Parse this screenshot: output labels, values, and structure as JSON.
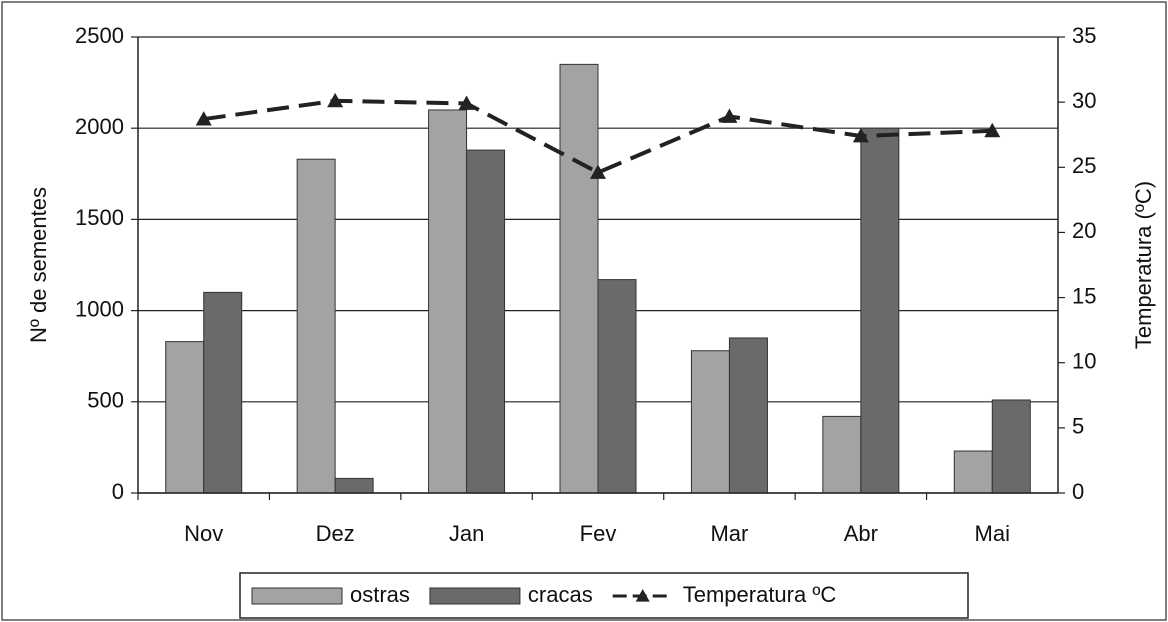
{
  "chart_data": {
    "type": "bar",
    "categories": [
      "Nov",
      "Dez",
      "Jan",
      "Fev",
      "Mar",
      "Abr",
      "Mai"
    ],
    "series": [
      {
        "name": "ostras",
        "color": "#a3a3a3",
        "values": [
          830,
          1830,
          2100,
          2350,
          780,
          420,
          230
        ]
      },
      {
        "name": "cracas",
        "color": "#6a6a6a",
        "values": [
          1100,
          80,
          1880,
          1170,
          850,
          2000,
          510
        ]
      },
      {
        "name": "Temperatura ºC",
        "color": "#222222",
        "type": "line",
        "axis": "y2",
        "values": [
          28.7,
          30.1,
          29.9,
          24.6,
          28.9,
          27.4,
          27.8
        ]
      }
    ],
    "ylabel": "Nº de sementes",
    "y2label": "Temperatura (ºC)",
    "ylim": [
      0,
      2500
    ],
    "yticks": [
      0,
      500,
      1000,
      1500,
      2000,
      2500
    ],
    "y2lim": [
      0,
      35
    ],
    "y2ticks": [
      0,
      5,
      10,
      15,
      20,
      25,
      30,
      35
    ],
    "grid": true,
    "legend": "bottom"
  }
}
